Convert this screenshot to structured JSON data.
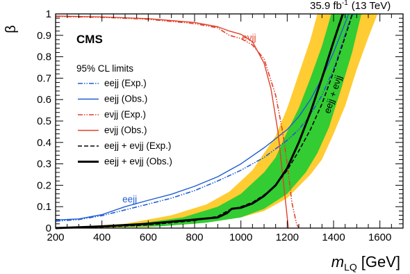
{
  "chart_data": {
    "type": "line",
    "lumi_label": "35.9 fb",
    "lumi_exponent": "-1",
    "lumi_energy": "(13 TeV)",
    "cms_label": "CMS",
    "legend_title": "95% CL limits",
    "xlabel_main": "m",
    "xlabel_sub": "LQ",
    "xlabel_unit": "[GeV]",
    "ylabel": "β",
    "xlim": [
      200,
      1700
    ],
    "ylim": [
      0,
      1
    ],
    "x_ticks": [
      200,
      400,
      600,
      800,
      1000,
      1200,
      1400,
      1600
    ],
    "y_ticks": [
      0,
      0.1,
      0.2,
      0.3,
      0.4,
      0.5,
      0.6,
      0.7,
      0.8,
      0.9,
      1
    ],
    "y_tick_labels": [
      "0",
      "0.1",
      "0.2",
      "0.3",
      "0.4",
      "0.5",
      "0.6",
      "0.7",
      "0.8",
      "0.9",
      "1"
    ],
    "band_2sigma": {
      "upper": [
        [
          200,
          0.0
        ],
        [
          500,
          0.02
        ],
        [
          700,
          0.06
        ],
        [
          850,
          0.11
        ],
        [
          950,
          0.17
        ],
        [
          1050,
          0.27
        ],
        [
          1150,
          0.43
        ],
        [
          1200,
          0.56
        ],
        [
          1250,
          0.72
        ],
        [
          1300,
          0.88
        ],
        [
          1330,
          1.0
        ]
      ],
      "lower": [
        [
          200,
          0.0
        ],
        [
          600,
          0.005
        ],
        [
          800,
          0.02
        ],
        [
          1000,
          0.05
        ],
        [
          1100,
          0.08
        ],
        [
          1200,
          0.14
        ],
        [
          1300,
          0.25
        ],
        [
          1350,
          0.32
        ],
        [
          1400,
          0.44
        ],
        [
          1450,
          0.57
        ],
        [
          1500,
          0.74
        ],
        [
          1550,
          0.89
        ],
        [
          1590,
          1.0
        ]
      ]
    },
    "band_1sigma": {
      "upper": [
        [
          200,
          0.0
        ],
        [
          550,
          0.02
        ],
        [
          750,
          0.05
        ],
        [
          900,
          0.1
        ],
        [
          1000,
          0.16
        ],
        [
          1100,
          0.26
        ],
        [
          1150,
          0.33
        ],
        [
          1200,
          0.45
        ],
        [
          1250,
          0.56
        ],
        [
          1300,
          0.7
        ],
        [
          1350,
          0.85
        ],
        [
          1390,
          1.0
        ]
      ],
      "lower": [
        [
          200,
          0.0
        ],
        [
          650,
          0.008
        ],
        [
          850,
          0.025
        ],
        [
          1000,
          0.05
        ],
        [
          1100,
          0.09
        ],
        [
          1200,
          0.16
        ],
        [
          1280,
          0.26
        ],
        [
          1330,
          0.35
        ],
        [
          1380,
          0.47
        ],
        [
          1430,
          0.64
        ],
        [
          1480,
          0.82
        ],
        [
          1520,
          1.0
        ]
      ]
    },
    "series": [
      {
        "name": "eejj (Exp.)",
        "color": "#1f5cd6",
        "style": "dashdot",
        "values": [
          [
            200,
            0.032
          ],
          [
            300,
            0.04
          ],
          [
            400,
            0.058
          ],
          [
            500,
            0.085
          ],
          [
            600,
            0.112
          ],
          [
            700,
            0.14
          ],
          [
            800,
            0.175
          ],
          [
            900,
            0.22
          ],
          [
            1000,
            0.27
          ],
          [
            1100,
            0.33
          ],
          [
            1200,
            0.41
          ],
          [
            1250,
            0.46
          ],
          [
            1300,
            0.53
          ],
          [
            1350,
            0.62
          ],
          [
            1400,
            0.74
          ],
          [
            1440,
            0.87
          ],
          [
            1470,
            0.97
          ],
          [
            1485,
            1.0
          ]
        ]
      },
      {
        "name": "eejj (Obs.)",
        "color": "#1f5cd6",
        "style": "solid",
        "values": [
          [
            200,
            0.038
          ],
          [
            300,
            0.043
          ],
          [
            400,
            0.063
          ],
          [
            500,
            0.1
          ],
          [
            600,
            0.13
          ],
          [
            700,
            0.158
          ],
          [
            800,
            0.195
          ],
          [
            900,
            0.24
          ],
          [
            1000,
            0.3
          ],
          [
            1100,
            0.375
          ],
          [
            1200,
            0.46
          ],
          [
            1250,
            0.52
          ],
          [
            1300,
            0.6
          ],
          [
            1350,
            0.7
          ],
          [
            1400,
            0.82
          ],
          [
            1440,
            0.93
          ],
          [
            1465,
            1.0
          ]
        ]
      },
      {
        "name": "evjj (Exp.)",
        "color": "#e0402a",
        "style": "dashdot",
        "values": [
          [
            200,
            0.988
          ],
          [
            400,
            0.984
          ],
          [
            600,
            0.975
          ],
          [
            800,
            0.955
          ],
          [
            900,
            0.935
          ],
          [
            950,
            0.9
          ],
          [
            1000,
            0.885
          ],
          [
            1050,
            0.855
          ],
          [
            1100,
            0.79
          ],
          [
            1150,
            0.62
          ],
          [
            1180,
            0.45
          ],
          [
            1200,
            0.3
          ],
          [
            1220,
            0.12
          ],
          [
            1240,
            0.02
          ],
          [
            1250,
            0.0
          ]
        ]
      },
      {
        "name": "evjj (Obs.)",
        "color": "#e0402a",
        "style": "solid",
        "values": [
          [
            200,
            0.99
          ],
          [
            400,
            0.986
          ],
          [
            600,
            0.978
          ],
          [
            800,
            0.96
          ],
          [
            900,
            0.94
          ],
          [
            950,
            0.92
          ],
          [
            1000,
            0.905
          ],
          [
            1050,
            0.87
          ],
          [
            1100,
            0.77
          ],
          [
            1130,
            0.65
          ],
          [
            1160,
            0.45
          ],
          [
            1180,
            0.25
          ],
          [
            1195,
            0.1
          ],
          [
            1205,
            0.0
          ]
        ]
      },
      {
        "name": "eejj + evjj (Exp.)",
        "color": "#000000",
        "style": "dashed",
        "values": [
          [
            200,
            0.0
          ],
          [
            400,
            0.005
          ],
          [
            600,
            0.015
          ],
          [
            800,
            0.035
          ],
          [
            900,
            0.055
          ],
          [
            950,
            0.085
          ],
          [
            1000,
            0.1
          ],
          [
            1050,
            0.12
          ],
          [
            1100,
            0.155
          ],
          [
            1150,
            0.2
          ],
          [
            1200,
            0.27
          ],
          [
            1250,
            0.36
          ],
          [
            1300,
            0.46
          ],
          [
            1350,
            0.58
          ],
          [
            1400,
            0.73
          ],
          [
            1440,
            0.86
          ],
          [
            1470,
            0.96
          ],
          [
            1480,
            1.0
          ]
        ]
      },
      {
        "name": "eejj + evjj (Obs.)",
        "color": "#000000",
        "style": "thick",
        "values": [
          [
            200,
            0.0
          ],
          [
            400,
            0.008
          ],
          [
            600,
            0.02
          ],
          [
            800,
            0.04
          ],
          [
            900,
            0.05
          ],
          [
            940,
            0.07
          ],
          [
            960,
            0.09
          ],
          [
            1000,
            0.095
          ],
          [
            1050,
            0.115
          ],
          [
            1100,
            0.15
          ],
          [
            1150,
            0.2
          ],
          [
            1200,
            0.28
          ],
          [
            1250,
            0.4
          ],
          [
            1300,
            0.54
          ],
          [
            1350,
            0.7
          ],
          [
            1400,
            0.87
          ],
          [
            1440,
            1.0
          ]
        ]
      }
    ],
    "annotations": [
      {
        "text": "eνjj",
        "x": 1035,
        "y": 0.875,
        "color": "#e0402a",
        "rotate": 0
      },
      {
        "text": "eejj",
        "x": 520,
        "y": 0.12,
        "color": "#1f5cd6",
        "rotate": 0
      },
      {
        "text": "eejj + eνjj",
        "x": 1410,
        "y": 0.62,
        "color": "#000000",
        "rotate": -72
      }
    ],
    "legend_entries": [
      "eejj (Exp.)",
      "eejj (Obs.)",
      "eνjj (Exp.)",
      "eνjj (Obs.)",
      "eejj + eνjj (Exp.)",
      "eejj + eνjj (Obs.)"
    ],
    "colors": {
      "band_2sigma": "#ffcc33",
      "band_1sigma": "#33cc33"
    }
  }
}
